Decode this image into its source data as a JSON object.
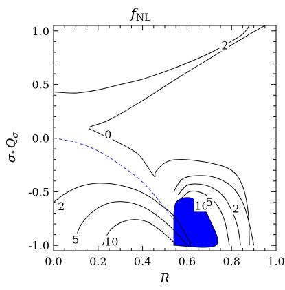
{
  "chart_data": {
    "type": "contour",
    "title": "f",
    "title_subscript": "NL",
    "xlabel": "R",
    "ylabel_main": "σ",
    "ylabel_sub1": "*",
    "ylabel_mid": "Q",
    "ylabel_sub2": "σ",
    "xlim": [
      0.0,
      1.0
    ],
    "ylim": [
      -1.05,
      1.05
    ],
    "x_ticks": [
      "0.0",
      "0.2",
      "0.4",
      "0.6",
      "0.8",
      "1.0"
    ],
    "y_ticks": [
      "1.0",
      "0.5",
      "0.0",
      "-0.5",
      "-1.0"
    ],
    "contour_labels": [
      {
        "text": "2",
        "x": 0.77,
        "y": 0.86
      },
      {
        "text": "0",
        "x": 0.245,
        "y": 0.03
      },
      {
        "text": "2",
        "x": 0.035,
        "y": -0.64
      },
      {
        "text": "5",
        "x": 0.1,
        "y": -0.95
      },
      {
        "text": "10",
        "x": 0.26,
        "y": -0.97
      },
      {
        "text": "10",
        "x": 0.665,
        "y": -0.635
      },
      {
        "text": "5",
        "x": 0.7,
        "y": -0.6
      },
      {
        "text": "2",
        "x": 0.82,
        "y": -0.66
      }
    ],
    "contours": [
      {
        "level": "2",
        "points": [
          [
            0.0,
            0.43
          ],
          [
            0.1,
            0.42
          ],
          [
            0.2,
            0.45
          ],
          [
            0.3,
            0.5
          ],
          [
            0.4,
            0.55
          ],
          [
            0.5,
            0.62
          ],
          [
            0.6,
            0.7
          ],
          [
            0.7,
            0.79
          ],
          [
            0.78,
            0.88
          ],
          [
            0.85,
            0.97
          ],
          [
            0.88,
            1.05
          ]
        ]
      },
      {
        "level": "0",
        "points": [
          [
            0.88,
            -1.0
          ],
          [
            0.875,
            -0.7
          ],
          [
            0.85,
            -0.45
          ],
          [
            0.8,
            -0.3
          ],
          [
            0.7,
            -0.23
          ],
          [
            0.58,
            -0.2
          ],
          [
            0.51,
            -0.22
          ],
          [
            0.46,
            -0.31
          ],
          [
            0.455,
            -0.36
          ],
          [
            0.43,
            -0.29
          ],
          [
            0.38,
            -0.15
          ],
          [
            0.3,
            -0.05
          ],
          [
            0.22,
            0.03
          ],
          [
            0.18,
            0.07
          ],
          [
            0.16,
            0.09
          ],
          [
            0.17,
            0.11
          ],
          [
            0.25,
            0.17
          ],
          [
            0.4,
            0.35
          ],
          [
            0.55,
            0.55
          ],
          [
            0.7,
            0.74
          ],
          [
            0.85,
            0.93
          ],
          [
            0.95,
            1.05
          ]
        ]
      },
      {
        "level": "2",
        "points": [
          [
            0.0,
            -0.6
          ],
          [
            0.05,
            -0.52
          ],
          [
            0.12,
            -0.45
          ],
          [
            0.2,
            -0.42
          ],
          [
            0.3,
            -0.44
          ],
          [
            0.4,
            -0.51
          ],
          [
            0.48,
            -0.62
          ],
          [
            0.55,
            -0.75
          ],
          [
            0.62,
            -1.0
          ]
        ]
      },
      {
        "level": "5",
        "points": [
          [
            0.09,
            -1.0
          ],
          [
            0.12,
            -0.82
          ],
          [
            0.18,
            -0.68
          ],
          [
            0.26,
            -0.6
          ],
          [
            0.34,
            -0.6
          ],
          [
            0.42,
            -0.66
          ],
          [
            0.5,
            -0.78
          ],
          [
            0.56,
            -0.9
          ],
          [
            0.6,
            -1.0
          ]
        ]
      },
      {
        "level": "10",
        "points": [
          [
            0.22,
            -1.0
          ],
          [
            0.25,
            -0.87
          ],
          [
            0.3,
            -0.79
          ],
          [
            0.36,
            -0.76
          ],
          [
            0.42,
            -0.78
          ],
          [
            0.48,
            -0.86
          ],
          [
            0.53,
            -0.95
          ],
          [
            0.55,
            -1.0
          ]
        ]
      },
      {
        "level": "2",
        "points": [
          [
            0.54,
            -0.5
          ],
          [
            0.58,
            -0.38
          ],
          [
            0.65,
            -0.35
          ],
          [
            0.73,
            -0.37
          ],
          [
            0.8,
            -0.45
          ],
          [
            0.85,
            -0.6
          ],
          [
            0.88,
            -0.8
          ],
          [
            0.9,
            -1.0
          ]
        ]
      },
      {
        "level": "5",
        "points": [
          [
            0.56,
            -0.53
          ],
          [
            0.6,
            -0.44
          ],
          [
            0.66,
            -0.43
          ],
          [
            0.72,
            -0.47
          ],
          [
            0.77,
            -0.56
          ],
          [
            0.81,
            -0.72
          ],
          [
            0.83,
            -0.85
          ],
          [
            0.84,
            -1.0
          ]
        ]
      },
      {
        "level": "10",
        "points": [
          [
            0.575,
            -0.56
          ],
          [
            0.61,
            -0.5
          ],
          [
            0.65,
            -0.5
          ],
          [
            0.7,
            -0.55
          ],
          [
            0.74,
            -0.64
          ],
          [
            0.77,
            -0.78
          ],
          [
            0.79,
            -1.0
          ]
        ]
      }
    ],
    "dashed_curve": {
      "color": "#3333cc",
      "points": [
        [
          0.0,
          0.0
        ],
        [
          0.1,
          -0.04
        ],
        [
          0.2,
          -0.12
        ],
        [
          0.3,
          -0.25
        ],
        [
          0.4,
          -0.41
        ],
        [
          0.48,
          -0.6
        ],
        [
          0.54,
          -0.76
        ]
      ]
    },
    "filled_region": {
      "color": "#0000ff",
      "points": [
        [
          0.54,
          -0.7
        ],
        [
          0.55,
          -0.6
        ],
        [
          0.58,
          -0.56
        ],
        [
          0.62,
          -0.56
        ],
        [
          0.66,
          -0.62
        ],
        [
          0.7,
          -0.75
        ],
        [
          0.73,
          -1.0
        ],
        [
          0.54,
          -1.0
        ]
      ]
    }
  }
}
